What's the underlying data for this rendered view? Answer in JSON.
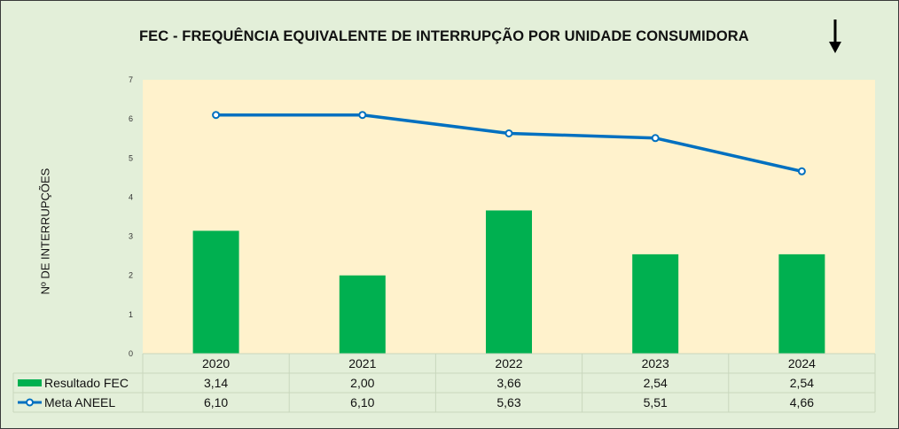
{
  "chart_data": {
    "type": "bar",
    "title": "FEC - FREQUÊNCIA EQUIVALENTE DE INTERRUPÇÃO POR UNIDADE CONSUMIDORA",
    "title_icon": "arrow-down-icon",
    "ylabel": "Nº DE INTERRUPÇÕES",
    "ylim": [
      0,
      7
    ],
    "yticks": [
      "0",
      "1",
      "2",
      "3",
      "4",
      "5",
      "6",
      "7"
    ],
    "categories": [
      "2020",
      "2021",
      "2022",
      "2023",
      "2024"
    ],
    "grid": false,
    "legend": "data-table",
    "series": [
      {
        "name": "Resultado FEC",
        "type": "bar",
        "color": "#00b050",
        "values": [
          3.14,
          2.0,
          3.66,
          2.54,
          2.54
        ],
        "labels": [
          "3,14",
          "2,00",
          "3,66",
          "2,54",
          "2,54"
        ]
      },
      {
        "name": "Meta ANEEL",
        "type": "line",
        "color": "#0070c0",
        "values": [
          6.1,
          6.1,
          5.63,
          5.51,
          4.66
        ],
        "labels": [
          "6,10",
          "6,10",
          "5,63",
          "5,51",
          "4,66"
        ]
      }
    ],
    "plot_background": "#fff2cc",
    "background": "#e3efd9"
  }
}
